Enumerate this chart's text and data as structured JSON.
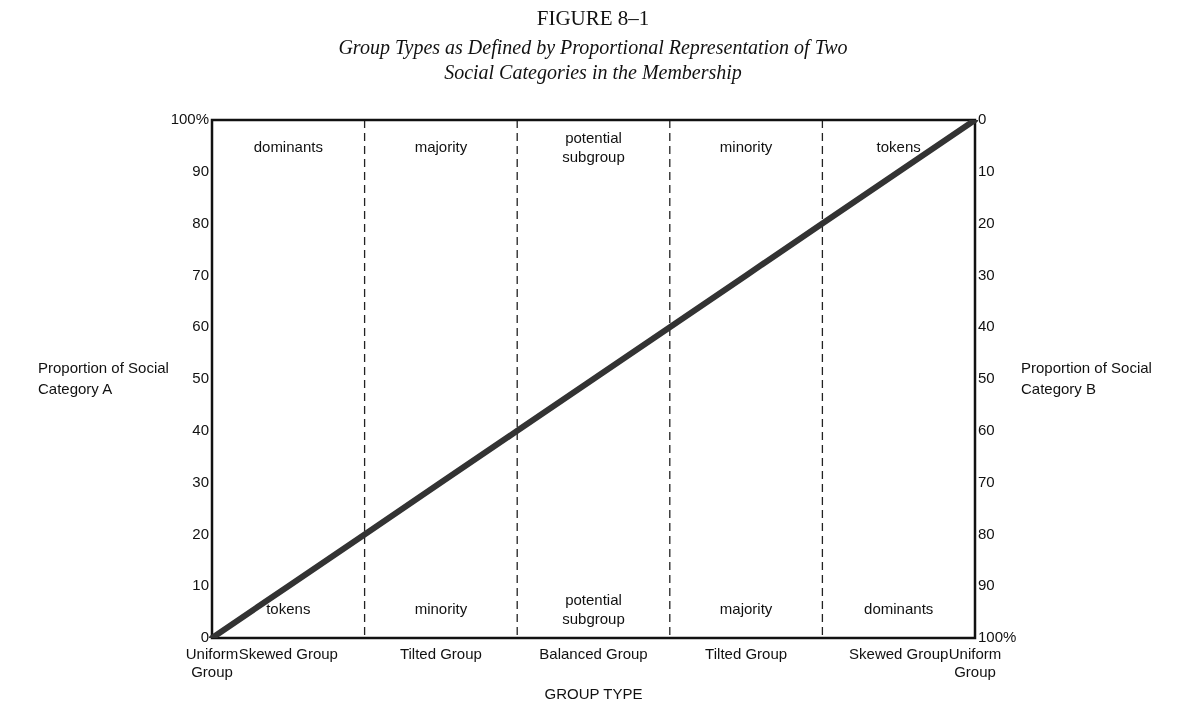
{
  "chart_data": {
    "type": "line",
    "title": "FIGURE 8–1",
    "subtitle": "Group Types as Defined by Proportional Representation of Two Social Categories in the Membership",
    "xlabel": "GROUP TYPE",
    "ylabel": "Proportion of Social Category A",
    "y2label": "Proportion of Social Category B",
    "categories": [
      "Uniform Group",
      "Skewed Group",
      null,
      "Tilted Group",
      null,
      "Balanced Group",
      null,
      "Tilted Group",
      null,
      "Skewed Group",
      "Uniform Group"
    ],
    "series": [
      {
        "color": "#333333",
        "values": [
          0,
          10,
          20,
          30,
          40,
          50,
          60,
          70,
          80,
          90,
          100
        ]
      }
    ],
    "ylim": [
      0,
      100
    ],
    "yticks": [
      0,
      10,
      20,
      30,
      40,
      50,
      60,
      70,
      80,
      90,
      {
        "value": 100,
        "label": "100%"
      }
    ],
    "y2lim": [
      100,
      0
    ],
    "y2ticks": [
      {
        "value": 100,
        "label": "100%"
      },
      90,
      80,
      70,
      60,
      50,
      40,
      30,
      20,
      10,
      0
    ],
    "annotations": [
      "dominants",
      "majority",
      "potential subgroup",
      "minority",
      "tokens",
      "tokens",
      "minority",
      "potential subgroup",
      "majority",
      "dominants"
    ],
    "grid": "x",
    "line_style": "solid"
  }
}
